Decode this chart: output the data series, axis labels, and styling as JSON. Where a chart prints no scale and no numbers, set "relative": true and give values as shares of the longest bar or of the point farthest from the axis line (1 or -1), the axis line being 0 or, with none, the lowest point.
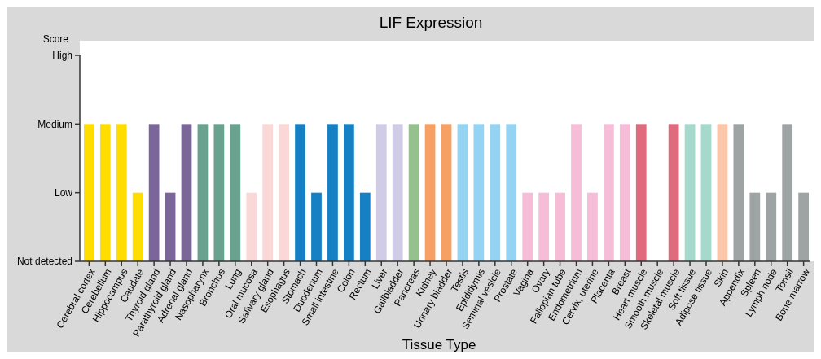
{
  "chart_data": {
    "type": "bar",
    "title": "LIF Expression",
    "xlabel": "Tissue Type",
    "relative": true,
    "categories": [
      "Cerebral cortex",
      "Cerebellum",
      "Hippocampus",
      "Caudate",
      "Thyroid gland",
      "Parathyroid gland",
      "Adrenal gland",
      "Nasopharynx",
      "Bronchus",
      "Lung",
      "Oral mucosa",
      "Salivary gland",
      "Esophagus",
      "Stomach",
      "Duodenum",
      "Small intestine",
      "Colon",
      "Rectum",
      "Liver",
      "Gallbladder",
      "Pancreas",
      "Kidney",
      "Urinary bladder",
      "Testis",
      "Epididymis",
      "Seminal vesicle",
      "Prostate",
      "Vagina",
      "Ovary",
      "Fallopian tube",
      "Endometrium",
      "Cervix, uterine",
      "Placenta",
      "Breast",
      "Heart muscle",
      "Smooth muscle",
      "Skeletal muscle",
      "Soft tissue",
      "Adipose tissue",
      "Skin",
      "Appendix",
      "Spleen",
      "Lymph node",
      "Tonsil",
      "Bone marrow"
    ],
    "values": [
      1,
      1,
      1,
      0.5,
      1,
      0.5,
      1,
      1,
      1,
      1,
      0.5,
      1,
      1,
      1,
      0.5,
      1,
      1,
      0.5,
      1,
      1,
      1,
      1,
      1,
      1,
      1,
      1,
      1,
      0.5,
      0.5,
      0.5,
      1,
      0.5,
      1,
      1,
      1,
      0,
      1,
      1,
      1,
      1,
      1,
      0.5,
      0.5,
      1,
      0.5
    ],
    "colors": [
      "#ffdd00",
      "#ffdd00",
      "#ffdd00",
      "#ffdd00",
      "#7b6699",
      "#7b6699",
      "#7b6699",
      "#69a38f",
      "#69a38f",
      "#69a38f",
      "#fbd8d8",
      "#fbd8d8",
      "#fbd8d8",
      "#1580c4",
      "#1580c4",
      "#1580c4",
      "#1580c4",
      "#1580c4",
      "#d0cce6",
      "#d0cce6",
      "#96c08e",
      "#f7a064",
      "#f7a064",
      "#94d3f2",
      "#94d3f2",
      "#94d3f2",
      "#94d3f2",
      "#f6bdd8",
      "#f6bdd8",
      "#f6bdd8",
      "#f6bdd8",
      "#f6bdd8",
      "#f6bdd8",
      "#f6bdd8",
      "#df6b7c",
      "#df6b7c",
      "#df6b7c",
      "#a5d9cb",
      "#a5d9cb",
      "#fcc6ab",
      "#9ea3a4",
      "#9ea3a4",
      "#9ea3a4",
      "#9ea3a4",
      "#9ea3a4"
    ],
    "annotations": [
      "Score",
      "Not detected",
      "Low",
      "Medium",
      "High"
    ],
    "grid": false
  }
}
